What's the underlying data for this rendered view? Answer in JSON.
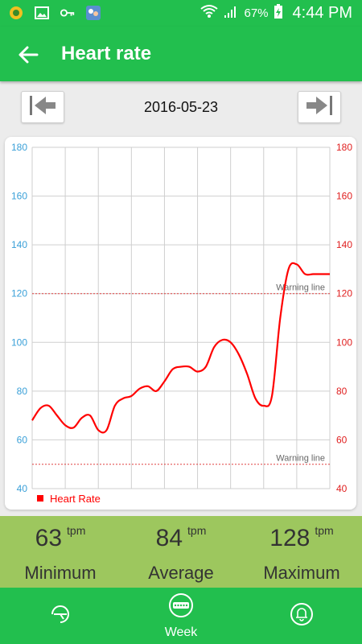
{
  "status_bar": {
    "battery": "67%",
    "time": "4:44 PM",
    "icons": [
      "notification-app-icon",
      "gallery-icon",
      "key-icon",
      "chat-app-icon",
      "wifi-icon",
      "signal-icon",
      "battery-charging-icon"
    ]
  },
  "app_bar": {
    "title": "Heart rate",
    "back_icon": "arrow-left-icon"
  },
  "date_nav": {
    "date": "2016-05-23",
    "prev_icon": "skip-previous-icon",
    "next_icon": "skip-next-icon"
  },
  "chart_data": {
    "type": "line",
    "ylim": [
      40,
      180
    ],
    "y_ticks": [
      40,
      60,
      80,
      100,
      120,
      140,
      160,
      180
    ],
    "y_ticks_right": [
      40,
      60,
      80,
      100,
      120,
      140,
      160,
      180
    ],
    "x_grid_count": 9,
    "series": [
      {
        "name": "Heart Rate",
        "color": "#ff0000",
        "x": [
          0,
          0.5,
          1,
          1.5,
          2,
          2.5,
          3,
          3.5,
          4,
          4.5,
          5,
          5.5,
          6,
          6.5,
          7,
          7.5,
          8,
          8.5,
          9,
          9.5,
          10,
          10.5,
          11,
          11.5,
          12,
          12.5,
          13,
          13.5,
          14,
          14.5,
          15,
          15.5,
          16,
          16.5,
          17,
          17.5,
          18
        ],
        "values": [
          68,
          73,
          74,
          70,
          66,
          65,
          69,
          70,
          64,
          64,
          74,
          77,
          78,
          81,
          82,
          80,
          84,
          89,
          90,
          90,
          88,
          90,
          98,
          101,
          100,
          95,
          87,
          77,
          74,
          78,
          110,
          130,
          132,
          128,
          128,
          128,
          128
        ]
      }
    ],
    "reference_lines": [
      {
        "label": "Warning line",
        "value": 120,
        "color": "#e04040"
      },
      {
        "label": "Warning line",
        "value": 50,
        "color": "#e04040"
      }
    ],
    "legend": {
      "position": "bottom-left",
      "label": "Heart Rate",
      "color": "#ff0000"
    },
    "left_axis_color": "#3aa0d8",
    "right_axis_color": "#e02020"
  },
  "stats": {
    "minimum": {
      "value": "63",
      "unit": "tpm",
      "label": "Minimum"
    },
    "average": {
      "value": "84",
      "unit": "tpm",
      "label": "Average"
    },
    "maximum": {
      "value": "128",
      "unit": "tpm",
      "label": "Maximum"
    }
  },
  "bottom_nav": {
    "tabs": [
      {
        "label": "",
        "icon": "day-dial-icon"
      },
      {
        "label": "Week",
        "icon": "week-calendar-icon",
        "active": true
      },
      {
        "label": "",
        "icon": "bell-icon"
      }
    ]
  },
  "colors": {
    "primary": "#22bf4e",
    "stats_bg": "#9dc75e",
    "line": "#ff0000"
  }
}
